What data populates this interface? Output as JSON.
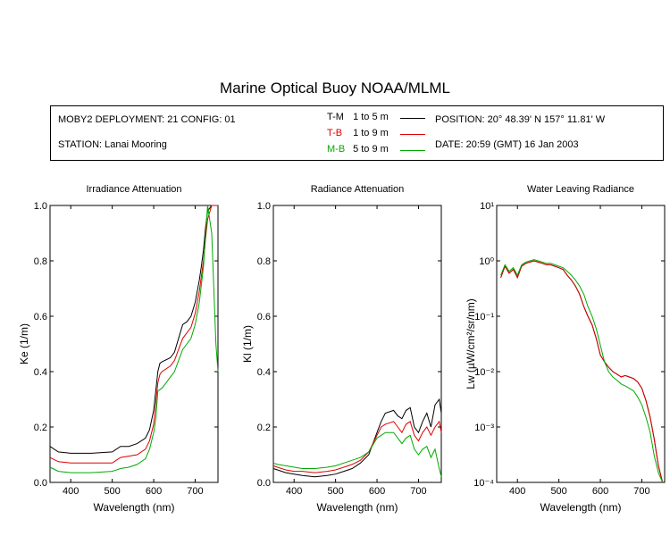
{
  "title": "Marine Optical Buoy NOAA/MLML",
  "info": {
    "deployment": "MOBY2 DEPLOYMENT: 21 CONFIG: 01",
    "station": "STATION: Lanai Mooring",
    "position": "POSITION: 20° 48.39' N   157° 11.81' W",
    "date": "DATE: 20:59 (GMT) 16 Jan 2003"
  },
  "legend": [
    {
      "code": "T-M",
      "range": "1 to 5  m",
      "color": "#000000"
    },
    {
      "code": "T-B",
      "range": "1 to 9  m",
      "color": "#dd0000"
    },
    {
      "code": "M-B",
      "range": "5 to 9  m",
      "color": "#00aa00"
    }
  ],
  "chart_data": [
    {
      "type": "line",
      "title": "Irradiance Attenuation",
      "xlabel": "Wavelength (nm)",
      "ylabel": "Ke  (1/m)",
      "xlim": [
        350,
        755
      ],
      "ylim": [
        0,
        1.0
      ],
      "xticks": [
        "400",
        "500",
        "600",
        "700"
      ],
      "yticks": [
        "0.0",
        "0.2",
        "0.4",
        "0.6",
        "0.8",
        "1.0"
      ],
      "series": [
        {
          "name": "T-M",
          "color": "#000000",
          "x": [
            350,
            370,
            400,
            450,
            500,
            520,
            540,
            560,
            580,
            590,
            600,
            610,
            615,
            620,
            640,
            650,
            660,
            670,
            680,
            690,
            700,
            710,
            715,
            720,
            725,
            730,
            740,
            750,
            755
          ],
          "y": [
            0.13,
            0.11,
            0.105,
            0.105,
            0.11,
            0.13,
            0.13,
            0.14,
            0.16,
            0.19,
            0.26,
            0.4,
            0.43,
            0.435,
            0.45,
            0.47,
            0.52,
            0.57,
            0.58,
            0.6,
            0.65,
            0.73,
            0.78,
            0.84,
            0.92,
            0.98,
            1.0,
            1.0,
            1.0
          ]
        },
        {
          "name": "T-B",
          "color": "#dd0000",
          "x": [
            350,
            370,
            400,
            450,
            500,
            520,
            540,
            560,
            580,
            590,
            600,
            610,
            615,
            620,
            640,
            650,
            660,
            670,
            680,
            690,
            700,
            710,
            720,
            725,
            730,
            740,
            750,
            755
          ],
          "y": [
            0.09,
            0.075,
            0.07,
            0.07,
            0.07,
            0.09,
            0.095,
            0.1,
            0.12,
            0.15,
            0.21,
            0.36,
            0.39,
            0.4,
            0.42,
            0.44,
            0.48,
            0.52,
            0.54,
            0.56,
            0.61,
            0.69,
            0.8,
            0.88,
            0.95,
            1.0,
            1.0,
            1.0
          ]
        },
        {
          "name": "M-B",
          "color": "#00aa00",
          "x": [
            350,
            370,
            400,
            450,
            500,
            520,
            540,
            560,
            580,
            590,
            600,
            605,
            610,
            620,
            630,
            640,
            650,
            660,
            670,
            680,
            690,
            700,
            710,
            720,
            730,
            740,
            750,
            755
          ],
          "y": [
            0.055,
            0.04,
            0.035,
            0.035,
            0.04,
            0.05,
            0.055,
            0.065,
            0.085,
            0.12,
            0.18,
            0.23,
            0.33,
            0.34,
            0.36,
            0.38,
            0.4,
            0.44,
            0.48,
            0.5,
            0.52,
            0.57,
            0.65,
            0.78,
            1.0,
            0.9,
            0.5,
            0.4
          ]
        }
      ]
    },
    {
      "type": "line",
      "title": "Radiance Attenuation",
      "xlabel": "Wavelength (nm)",
      "ylabel": "Kl  (1/m)",
      "xlim": [
        350,
        755
      ],
      "ylim": [
        0,
        1.0
      ],
      "xticks": [
        "400",
        "500",
        "600",
        "700"
      ],
      "yticks": [
        "0.0",
        "0.2",
        "0.4",
        "0.6",
        "0.8",
        "1.0"
      ],
      "series": [
        {
          "name": "T-M",
          "color": "#000000",
          "x": [
            350,
            360,
            380,
            400,
            420,
            450,
            480,
            500,
            520,
            540,
            560,
            580,
            600,
            610,
            620,
            640,
            650,
            660,
            670,
            680,
            690,
            700,
            710,
            720,
            730,
            740,
            750,
            755
          ],
          "y": [
            0.05,
            0.045,
            0.035,
            0.03,
            0.025,
            0.02,
            0.025,
            0.03,
            0.04,
            0.05,
            0.07,
            0.1,
            0.18,
            0.22,
            0.25,
            0.26,
            0.24,
            0.23,
            0.26,
            0.27,
            0.2,
            0.18,
            0.22,
            0.25,
            0.2,
            0.28,
            0.3,
            0.25
          ]
        },
        {
          "name": "T-B",
          "color": "#dd0000",
          "x": [
            350,
            360,
            380,
            400,
            420,
            450,
            480,
            500,
            520,
            540,
            560,
            580,
            600,
            610,
            620,
            640,
            650,
            660,
            670,
            680,
            690,
            700,
            710,
            720,
            730,
            740,
            750,
            755
          ],
          "y": [
            0.06,
            0.055,
            0.045,
            0.04,
            0.04,
            0.035,
            0.04,
            0.045,
            0.055,
            0.065,
            0.08,
            0.11,
            0.17,
            0.2,
            0.21,
            0.22,
            0.2,
            0.18,
            0.21,
            0.22,
            0.17,
            0.15,
            0.18,
            0.2,
            0.17,
            0.2,
            0.22,
            0.18
          ]
        },
        {
          "name": "M-B",
          "color": "#00aa00",
          "x": [
            350,
            360,
            380,
            400,
            420,
            450,
            480,
            500,
            520,
            540,
            560,
            580,
            600,
            610,
            620,
            640,
            650,
            660,
            670,
            680,
            690,
            700,
            710,
            720,
            730,
            740,
            750,
            755
          ],
          "y": [
            0.07,
            0.065,
            0.06,
            0.055,
            0.05,
            0.05,
            0.055,
            0.06,
            0.07,
            0.08,
            0.09,
            0.11,
            0.16,
            0.17,
            0.18,
            0.18,
            0.16,
            0.14,
            0.16,
            0.17,
            0.12,
            0.1,
            0.12,
            0.13,
            0.09,
            0.12,
            0.05,
            0.02
          ]
        }
      ]
    },
    {
      "type": "line",
      "title": "Water Leaving Radiance",
      "xlabel": "Wavelength (nm)",
      "ylabel": "Lw  (µW/cm²/sr/nm)",
      "xlim": [
        350,
        755
      ],
      "ylim": [
        0.0001,
        10
      ],
      "yscale": "log",
      "xticks": [
        "400",
        "500",
        "600",
        "700"
      ],
      "yticks": [
        "10⁻⁴",
        "10⁻³",
        "10⁻²",
        "10⁻¹",
        "10⁰",
        "10¹"
      ],
      "series": [
        {
          "name": "T-M",
          "color": "#000000",
          "x": [
            360,
            370,
            380,
            390,
            400,
            410,
            420,
            430,
            440,
            450,
            460,
            470,
            480,
            490,
            500,
            510,
            520,
            530,
            540,
            550,
            560,
            570,
            580,
            590,
            600,
            610,
            620,
            630,
            640,
            650,
            660,
            670,
            680,
            690,
            700,
            710,
            720,
            730,
            740,
            750
          ],
          "y": [
            0.5,
            0.8,
            0.6,
            0.7,
            0.5,
            0.8,
            0.9,
            0.95,
            1.0,
            0.95,
            0.9,
            0.85,
            0.85,
            0.8,
            0.75,
            0.7,
            0.55,
            0.45,
            0.35,
            0.25,
            0.15,
            0.1,
            0.07,
            0.04,
            0.02,
            0.015,
            0.012,
            0.01,
            0.009,
            0.008,
            0.0085,
            0.008,
            0.0075,
            0.0065,
            0.005,
            0.003,
            0.0015,
            0.0006,
            0.0002,
            0.0001
          ]
        },
        {
          "name": "T-B",
          "color": "#dd0000",
          "x": [
            360,
            370,
            380,
            390,
            400,
            410,
            420,
            430,
            440,
            450,
            460,
            470,
            480,
            490,
            500,
            510,
            520,
            530,
            540,
            550,
            560,
            570,
            580,
            590,
            600,
            610,
            620,
            630,
            640,
            650,
            660,
            670,
            680,
            690,
            700,
            710,
            720,
            730,
            740,
            750
          ],
          "y": [
            0.5,
            0.8,
            0.6,
            0.7,
            0.5,
            0.8,
            0.9,
            0.95,
            1.0,
            0.95,
            0.9,
            0.85,
            0.85,
            0.8,
            0.75,
            0.7,
            0.55,
            0.45,
            0.35,
            0.25,
            0.15,
            0.1,
            0.07,
            0.04,
            0.02,
            0.015,
            0.012,
            0.01,
            0.009,
            0.008,
            0.0085,
            0.008,
            0.0075,
            0.0065,
            0.005,
            0.003,
            0.0015,
            0.0006,
            0.0002,
            0.0001
          ]
        },
        {
          "name": "M-B",
          "color": "#00aa00",
          "x": [
            360,
            370,
            380,
            390,
            400,
            410,
            420,
            430,
            440,
            450,
            460,
            470,
            480,
            490,
            500,
            510,
            520,
            530,
            540,
            550,
            560,
            570,
            580,
            590,
            600,
            610,
            620,
            630,
            640,
            650,
            660,
            670,
            680,
            690,
            700,
            710,
            720,
            730,
            740,
            750
          ],
          "y": [
            0.55,
            0.85,
            0.65,
            0.75,
            0.55,
            0.85,
            0.95,
            1.0,
            1.05,
            1.0,
            0.95,
            0.9,
            0.9,
            0.85,
            0.8,
            0.75,
            0.65,
            0.55,
            0.45,
            0.35,
            0.25,
            0.15,
            0.1,
            0.06,
            0.03,
            0.015,
            0.01,
            0.008,
            0.007,
            0.006,
            0.0055,
            0.005,
            0.0045,
            0.0035,
            0.0025,
            0.0015,
            0.0008,
            0.0003,
            0.00015,
            0.0001
          ]
        }
      ]
    }
  ]
}
